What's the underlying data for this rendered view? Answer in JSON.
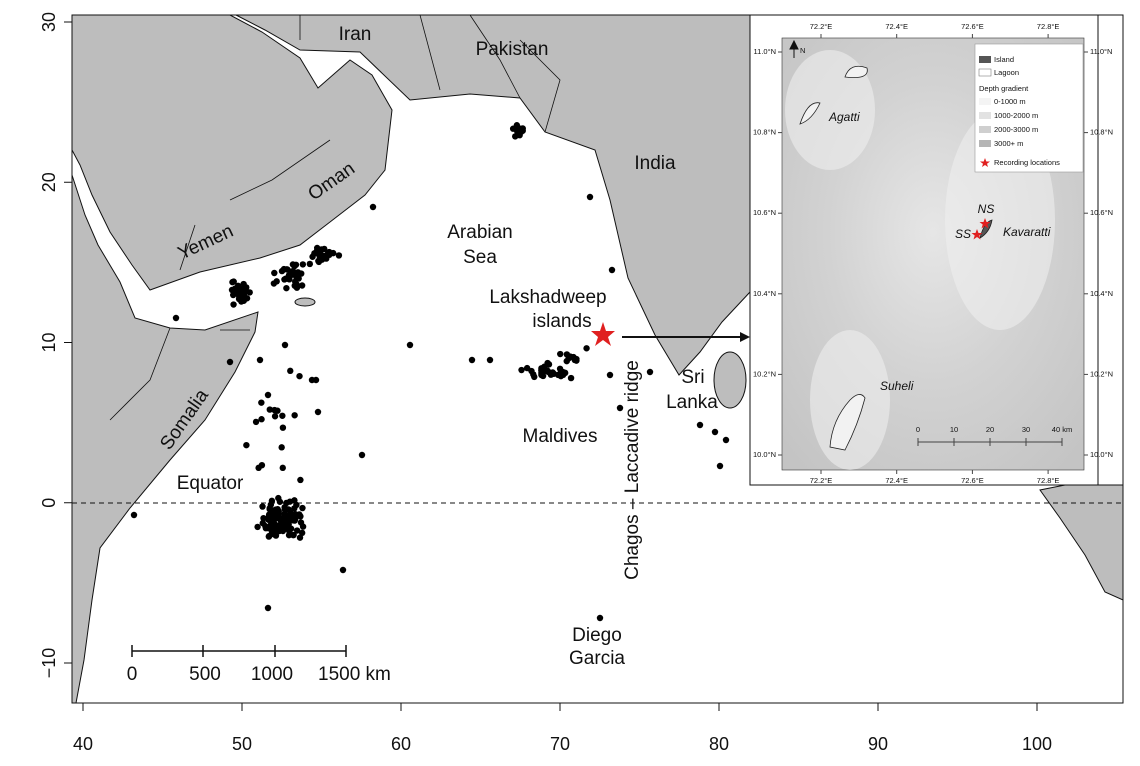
{
  "map": {
    "x_ticks": [
      40,
      50,
      60,
      70,
      80,
      90,
      100
    ],
    "y_ticks": [
      {
        "value": -10,
        "label": "−10"
      },
      0,
      10,
      20,
      30
    ],
    "labels": {
      "iran": "Iran",
      "pakistan": "Pakistan",
      "india": "India",
      "oman": "Oman",
      "yemen": "Yemen",
      "somalia": "Somalia",
      "arabian_sea": [
        "Arabian",
        "Sea"
      ],
      "lakshadweep": [
        "Lakshadweep",
        "islands"
      ],
      "sri_lanka": [
        "Sri",
        "Lanka"
      ],
      "maldives": "Maldives",
      "equator": "Equator",
      "ridge": "Chagos – Laccadive ridge",
      "diego_garcia": [
        "Diego",
        "Garcia"
      ]
    },
    "scale_bar": [
      "0",
      "500",
      "1000",
      "1500 km"
    ],
    "inset": {
      "lon_ticks": [
        "72.2°E",
        "72.4°E",
        "72.6°E",
        "72.8°E"
      ],
      "lat_ticks": [
        "11.0°N",
        "10.8°N",
        "10.6°N",
        "10.4°N",
        "10.2°N",
        "10.0°N"
      ],
      "north": "N",
      "legend": {
        "island": "Island",
        "lagoon": "Lagoon",
        "depth_title": "Depth gradient",
        "depths": [
          "0-1000 m",
          "1000-2000 m",
          "2000-3000 m",
          "3000+ m"
        ],
        "recording": "Recording locations"
      },
      "places": {
        "agatti": "Agatti",
        "kavaratti": "Kavaratti",
        "suheli": "Suheli",
        "ns": "NS",
        "ss": "SS"
      },
      "scale_bar": [
        "0",
        "10",
        "20",
        "30",
        "40 km"
      ]
    }
  }
}
